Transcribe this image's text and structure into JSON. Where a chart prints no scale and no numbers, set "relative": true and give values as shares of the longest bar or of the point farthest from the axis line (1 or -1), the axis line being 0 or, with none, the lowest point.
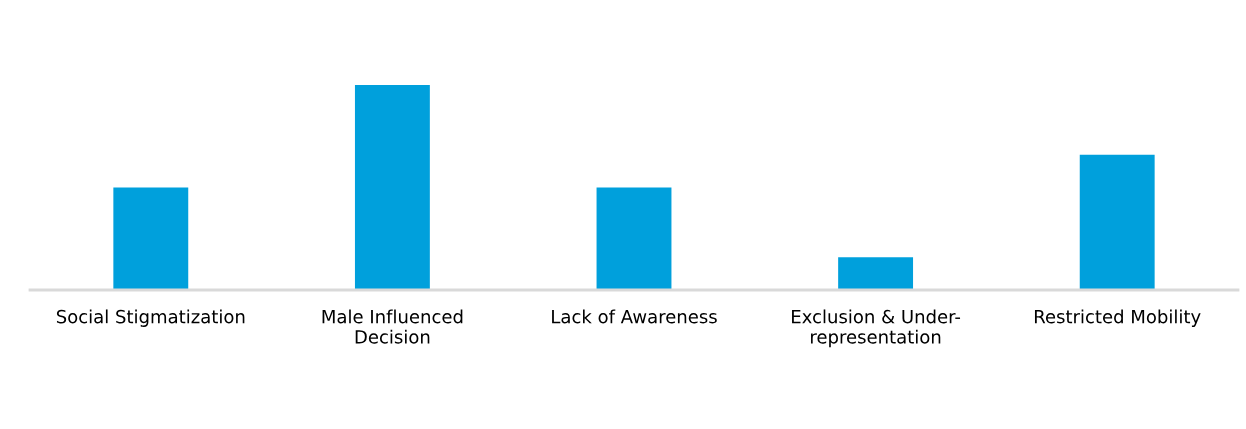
{
  "chart_data": {
    "type": "bar",
    "relative": true,
    "categories": [
      "Social Stigmatization",
      "Male Influenced\nDecision",
      "Lack of Awareness",
      "Exclusion & Under-\nrepresentation",
      "Restricted Mobility"
    ],
    "values": [
      0.5,
      1,
      0.5,
      0.16,
      0.66
    ],
    "color": "#00a0dc",
    "grid": false,
    "legend": false
  }
}
